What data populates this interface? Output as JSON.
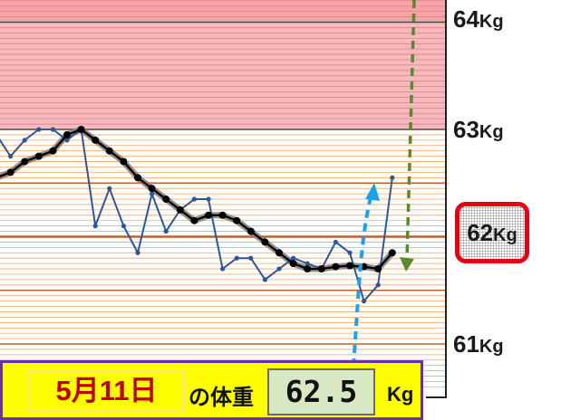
{
  "chart_data": {
    "type": "line",
    "title": "",
    "xlabel": "",
    "ylabel": "",
    "ylim": [
      60.55,
      64.3
    ],
    "y_ticks": [
      {
        "value": 64,
        "num": "64",
        "unit": "Kg"
      },
      {
        "value": 63,
        "num": "63",
        "unit": "Kg"
      },
      {
        "value": 62,
        "num": "62",
        "unit": "Kg",
        "highlighted": true
      },
      {
        "value": 61,
        "num": "61",
        "unit": "Kg"
      }
    ],
    "grid": true,
    "series": [
      {
        "color": "#2f5597",
        "values": [
          62.95,
          62.75,
          62.9,
          63.0,
          63.0,
          62.9,
          63.0,
          62.1,
          62.45,
          62.1,
          61.85,
          62.4,
          62.05,
          62.25,
          62.35,
          62.35,
          61.7,
          61.8,
          61.8,
          61.6,
          61.7,
          61.8,
          61.75,
          61.7,
          61.95,
          61.85,
          61.4,
          61.55,
          62.55
        ]
      },
      {
        "color": "#000000",
        "values": [
          62.55,
          62.6,
          62.7,
          62.75,
          62.8,
          62.95,
          63.0,
          62.9,
          62.8,
          62.7,
          62.55,
          62.45,
          62.35,
          62.25,
          62.15,
          62.2,
          62.2,
          62.15,
          62.05,
          61.95,
          61.85,
          61.75,
          61.7,
          61.7,
          61.72,
          61.73,
          61.72,
          61.7,
          61.85
        ]
      }
    ]
  },
  "colors": {
    "band_red": "#f6b9bd",
    "band_line_red": "#e38085",
    "line_orange": "#f2a565",
    "line_dark_orange": "#c0602c",
    "arrow_blue": "#1aa3e8",
    "arrow_green": "#5a8a2a"
  },
  "info": {
    "date": "5月11日",
    "label": "の体重",
    "value": "62.5",
    "unit": "Kg"
  }
}
